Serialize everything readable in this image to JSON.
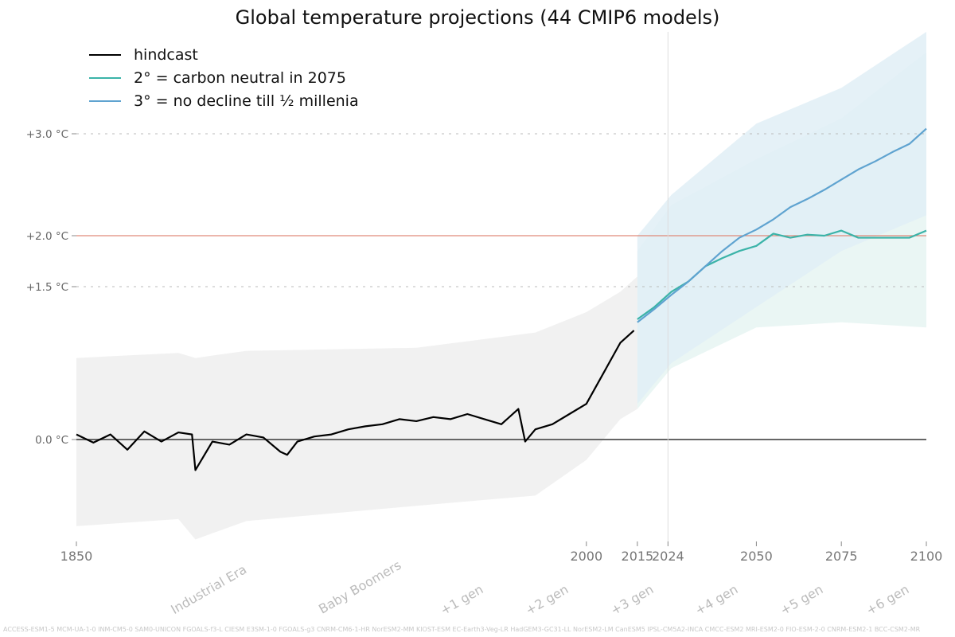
{
  "chart_data": {
    "type": "line",
    "title": "Global temperature projections (44 CMIP6 models)",
    "ylim": [
      -1.0,
      4.0
    ],
    "xlim": [
      1850,
      2100
    ],
    "y_ticks": [
      {
        "value": 0.0,
        "label": "0.0 °C"
      },
      {
        "value": 1.5,
        "label": "+1.5 °C"
      },
      {
        "value": 2.0,
        "label": "+2.0 °C"
      },
      {
        "value": 3.0,
        "label": "+3.0 °C"
      }
    ],
    "x_ticks": [
      {
        "value": 1850,
        "label": "1850"
      },
      {
        "value": 2000,
        "label": "2000"
      },
      {
        "value": 2015,
        "label": "2015"
      },
      {
        "value": 2024,
        "label": "2024"
      },
      {
        "value": 2050,
        "label": "2050"
      },
      {
        "value": 2075,
        "label": "2075"
      },
      {
        "value": 2100,
        "label": "2100"
      }
    ],
    "reference_lines": [
      {
        "y": 0.0,
        "color": "#666666",
        "style": "solid"
      },
      {
        "y": 1.5,
        "color": "#bbbbbb",
        "style": "dotted"
      },
      {
        "y": 2.0,
        "color": "#e08a7a",
        "style": "solid"
      },
      {
        "y": 3.0,
        "color": "#bbbbbb",
        "style": "dotted"
      }
    ],
    "vertical_line_year": 2024,
    "legend_position": "top-left",
    "series": [
      {
        "name": "hindcast",
        "color": "#000000",
        "x": [
          1850,
          1855,
          1860,
          1865,
          1870,
          1875,
          1880,
          1884,
          1885,
          1890,
          1895,
          1900,
          1905,
          1910,
          1912,
          1915,
          1920,
          1925,
          1930,
          1935,
          1940,
          1945,
          1950,
          1955,
          1960,
          1965,
          1970,
          1975,
          1980,
          1982,
          1985,
          1990,
          1995,
          2000,
          2005,
          2010,
          2014
        ],
        "values": [
          0.05,
          -0.03,
          0.05,
          -0.1,
          0.08,
          -0.02,
          0.07,
          0.05,
          -0.3,
          -0.02,
          -0.05,
          0.05,
          0.02,
          -0.12,
          -0.15,
          -0.02,
          0.03,
          0.05,
          0.1,
          0.13,
          0.15,
          0.2,
          0.18,
          0.22,
          0.2,
          0.25,
          0.2,
          0.15,
          0.3,
          -0.02,
          0.1,
          0.15,
          0.25,
          0.35,
          0.65,
          0.95,
          1.07
        ]
      },
      {
        "name": "2° = carbon neutral in 2075",
        "color": "#3bb3a8",
        "x": [
          2015,
          2020,
          2025,
          2030,
          2035,
          2040,
          2045,
          2050,
          2055,
          2060,
          2065,
          2070,
          2075,
          2080,
          2085,
          2090,
          2095,
          2100
        ],
        "values": [
          1.18,
          1.3,
          1.45,
          1.55,
          1.7,
          1.78,
          1.85,
          1.9,
          2.02,
          1.98,
          2.01,
          2.0,
          2.05,
          1.98,
          1.98,
          1.98,
          1.98,
          2.05
        ]
      },
      {
        "name": "3° = no decline till ½ millenia",
        "color": "#5fa3d0",
        "x": [
          2015,
          2020,
          2025,
          2030,
          2035,
          2040,
          2045,
          2050,
          2055,
          2060,
          2065,
          2070,
          2075,
          2080,
          2085,
          2090,
          2095,
          2100
        ],
        "values": [
          1.15,
          1.28,
          1.42,
          1.55,
          1.7,
          1.85,
          1.98,
          2.06,
          2.16,
          2.28,
          2.36,
          2.45,
          2.55,
          2.65,
          2.73,
          2.82,
          2.9,
          3.05
        ]
      }
    ],
    "bands": [
      {
        "name": "hindcast range",
        "color": "#eeeeee",
        "x": [
          1850,
          1880,
          1885,
          1900,
          1950,
          1985,
          2000,
          2010,
          2015
        ],
        "lower": [
          -0.85,
          -0.78,
          -0.98,
          -0.8,
          -0.65,
          -0.55,
          -0.2,
          0.2,
          0.3
        ],
        "upper": [
          0.8,
          0.85,
          0.8,
          0.87,
          0.9,
          1.05,
          1.25,
          1.45,
          1.6
        ]
      },
      {
        "name": "2° projection range",
        "color": "#e6f5f2",
        "x": [
          2015,
          2025,
          2050,
          2075,
          2100
        ],
        "lower": [
          0.3,
          0.7,
          1.1,
          1.15,
          1.1
        ],
        "upper": [
          1.85,
          2.3,
          2.75,
          3.15,
          3.8
        ]
      },
      {
        "name": "3° projection range",
        "color": "#e1eef6",
        "x": [
          2015,
          2025,
          2050,
          2075,
          2100
        ],
        "lower": [
          0.35,
          0.75,
          1.3,
          1.85,
          2.2
        ],
        "upper": [
          2.0,
          2.4,
          3.1,
          3.45,
          4.0
        ]
      }
    ]
  },
  "era_labels": [
    "Industrial Era",
    "Baby Boomers",
    "+1 gen",
    "+2 gen",
    "+3 gen",
    "+4 gen",
    "+5 gen",
    "+6 gen"
  ],
  "models_text": "ACCESS-ESM1-5 MCM-UA-1-0 INM-CM5-0 SAM0-UNICON FGOALS-f3-L CIESM E3SM-1-0 FGOALS-g3 CNRM-CM6-1-HR NorESM2-MM KIOST-ESM EC-Earth3-Veg-LR HadGEM3-GC31-LL NorESM2-LM CanESM5 IPSL-CM5A2-INCA CMCC-ESM2 MRI-ESM2-0 FIO-ESM-2-0 CNRM-ESM2-1 BCC-CSM2-MR"
}
